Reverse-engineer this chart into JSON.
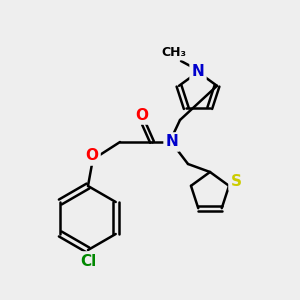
{
  "background_color": "#eeeeee",
  "atom_colors": {
    "C": "#000000",
    "N": "#0000cc",
    "O": "#ff0000",
    "S": "#cccc00",
    "Cl": "#008800"
  },
  "bond_width": 1.8,
  "font_size": 11
}
